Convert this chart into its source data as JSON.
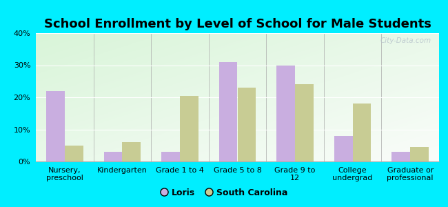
{
  "title": "School Enrollment by Level of School for Male Students",
  "categories": [
    "Nursery,\npreschool",
    "Kindergarten",
    "Grade 1 to 4",
    "Grade 5 to 8",
    "Grade 9 to\n12",
    "College\nundergrad",
    "Graduate or\nprofessional"
  ],
  "loris": [
    22,
    3,
    3,
    31,
    30,
    8,
    3
  ],
  "south_carolina": [
    5,
    6,
    20.5,
    23,
    24,
    18,
    4.5
  ],
  "loris_color": "#c9aee0",
  "sc_color": "#c8cc94",
  "background_color": "#00eeff",
  "ylim": [
    0,
    40
  ],
  "yticks": [
    0,
    10,
    20,
    30,
    40
  ],
  "legend_loris": "Loris",
  "legend_sc": "South Carolina",
  "watermark": "City-Data.com",
  "bar_width": 0.32,
  "title_fontsize": 13,
  "tick_fontsize": 8
}
